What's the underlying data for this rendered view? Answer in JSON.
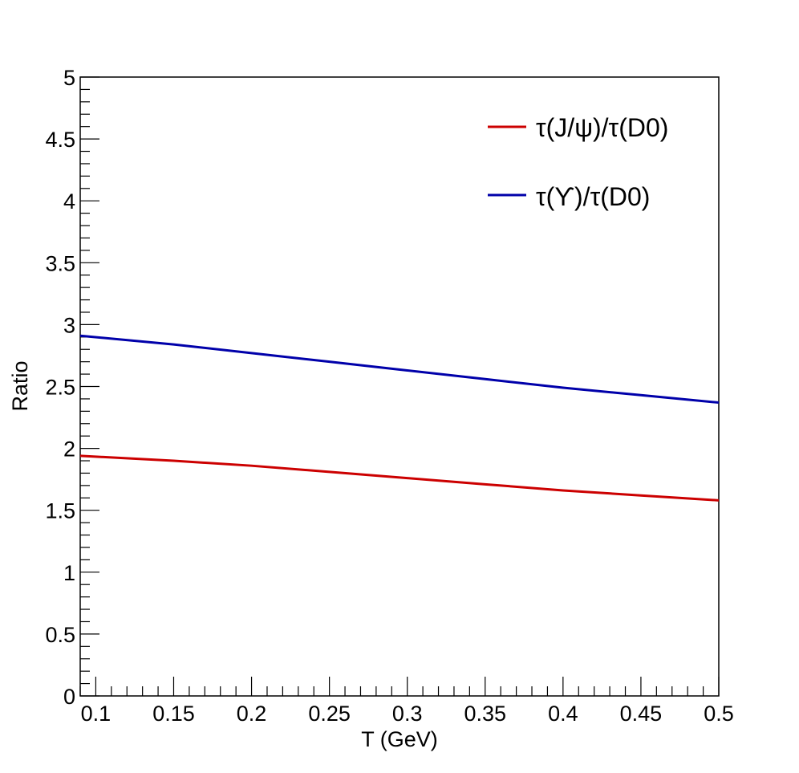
{
  "chart_data": {
    "type": "line",
    "title": "",
    "xlabel": "T (GeV)",
    "ylabel": "Ratio",
    "xlim": [
      0.09,
      0.5
    ],
    "ylim": [
      0,
      5
    ],
    "x_ticks": [
      {
        "value": 0.1,
        "label": "0.1"
      },
      {
        "value": 0.15,
        "label": "0.15"
      },
      {
        "value": 0.2,
        "label": "0.2"
      },
      {
        "value": 0.25,
        "label": "0.25"
      },
      {
        "value": 0.3,
        "label": "0.3"
      },
      {
        "value": 0.35,
        "label": "0.35"
      },
      {
        "value": 0.4,
        "label": "0.4"
      },
      {
        "value": 0.45,
        "label": "0.45"
      },
      {
        "value": 0.5,
        "label": "0.5"
      }
    ],
    "y_ticks": [
      {
        "value": 0,
        "label": "0"
      },
      {
        "value": 0.5,
        "label": "0.5"
      },
      {
        "value": 1,
        "label": "1"
      },
      {
        "value": 1.5,
        "label": "1.5"
      },
      {
        "value": 2,
        "label": "2"
      },
      {
        "value": 2.5,
        "label": "2.5"
      },
      {
        "value": 3,
        "label": "3"
      },
      {
        "value": 3.5,
        "label": "3.5"
      },
      {
        "value": 4,
        "label": "4"
      },
      {
        "value": 4.5,
        "label": "4.5"
      },
      {
        "value": 5,
        "label": "5"
      }
    ],
    "grid": false,
    "legend_position": "top-right",
    "series": [
      {
        "name": "τ(J/ψ)/τ(D0)",
        "color": "#cc0000",
        "x": [
          0.09,
          0.15,
          0.2,
          0.25,
          0.3,
          0.35,
          0.4,
          0.45,
          0.5
        ],
        "y": [
          1.94,
          1.9,
          1.86,
          1.81,
          1.76,
          1.71,
          1.66,
          1.62,
          1.58
        ]
      },
      {
        "name": "τ(ϒ)/τ(D0)",
        "color": "#0000aa",
        "x": [
          0.09,
          0.15,
          0.2,
          0.25,
          0.3,
          0.35,
          0.4,
          0.45,
          0.5
        ],
        "y": [
          2.91,
          2.84,
          2.77,
          2.7,
          2.63,
          2.56,
          2.49,
          2.43,
          2.37
        ]
      }
    ]
  }
}
